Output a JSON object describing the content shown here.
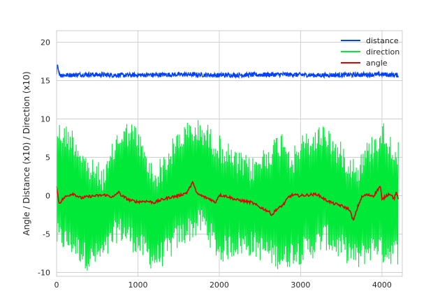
{
  "chart_data": {
    "type": "line",
    "title": "",
    "xlabel": "",
    "ylabel": "Angle / Distance (x10) / Direction (x10)",
    "xlim": [
      0,
      4250
    ],
    "ylim": [
      -10.5,
      21.5
    ],
    "x_ticks": [
      0,
      1000,
      2000,
      3000,
      4000
    ],
    "y_ticks": [
      -10,
      -5,
      0,
      5,
      10,
      15,
      20
    ],
    "x_tick_labels": [
      "0",
      "1000",
      "2000",
      "3000",
      "4000"
    ],
    "y_tick_labels": [
      "-10",
      "-5",
      "0",
      "5",
      "10",
      "15",
      "20"
    ],
    "grid": true,
    "legend_position": "top-right",
    "series": [
      {
        "name": "distance",
        "color": "#0040ff",
        "points": [
          [
            0,
            15.8
          ],
          [
            10,
            17.2
          ],
          [
            30,
            15.9
          ],
          [
            60,
            15.7
          ],
          [
            400,
            15.8
          ],
          [
            800,
            15.7
          ],
          [
            1200,
            15.75
          ],
          [
            1600,
            15.8
          ],
          [
            2000,
            15.7
          ],
          [
            2400,
            15.75
          ],
          [
            2800,
            15.8
          ],
          [
            3200,
            15.7
          ],
          [
            3600,
            15.75
          ],
          [
            4000,
            15.8
          ],
          [
            4200,
            15.7
          ]
        ],
        "band": [
          15.4,
          16.2
        ]
      },
      {
        "name": "direction",
        "color": "#00e838",
        "envelope_x": [
          0,
          200,
          400,
          600,
          750,
          900,
          1000,
          1100,
          1200,
          1350,
          1500,
          1650,
          1800,
          1900,
          2000,
          2200,
          2400,
          2600,
          2800,
          2900,
          3000,
          3200,
          3300,
          3400,
          3600,
          3700,
          3800,
          3950,
          4000,
          4200
        ],
        "envelope_high": [
          10,
          9,
          5,
          4,
          9,
          10,
          9,
          6,
          4,
          6,
          9,
          10,
          10,
          9,
          8,
          6,
          5,
          7,
          9,
          6,
          8,
          9,
          10,
          8,
          6,
          5,
          7,
          9,
          10,
          7
        ],
        "envelope_low": [
          -7,
          -8,
          -10,
          -9,
          -6,
          -7,
          -8,
          -9,
          -10,
          -9,
          -7,
          -6,
          -5,
          -7,
          -9,
          -8,
          -8,
          -9,
          -10,
          -9,
          -9,
          -8,
          -7,
          -8,
          -9,
          -10,
          -9,
          -8,
          -9,
          -9
        ]
      },
      {
        "name": "angle",
        "color": "#e00000",
        "points": [
          [
            0,
            1.2
          ],
          [
            30,
            -1.0
          ],
          [
            100,
            -0.2
          ],
          [
            200,
            0.3
          ],
          [
            300,
            -0.3
          ],
          [
            400,
            -0.1
          ],
          [
            500,
            0.0
          ],
          [
            600,
            0.1
          ],
          [
            700,
            -0.2
          ],
          [
            760,
            0.5
          ],
          [
            800,
            0.0
          ],
          [
            900,
            -0.6
          ],
          [
            1000,
            -0.8
          ],
          [
            1100,
            -0.7
          ],
          [
            1200,
            -0.9
          ],
          [
            1300,
            -0.5
          ],
          [
            1400,
            -0.2
          ],
          [
            1500,
            0.0
          ],
          [
            1600,
            0.4
          ],
          [
            1680,
            1.8
          ],
          [
            1720,
            0.3
          ],
          [
            1800,
            -0.1
          ],
          [
            1900,
            -0.5
          ],
          [
            1950,
            -0.9
          ],
          [
            2000,
            0.1
          ],
          [
            2100,
            -0.1
          ],
          [
            2200,
            -0.5
          ],
          [
            2300,
            -0.7
          ],
          [
            2400,
            -0.9
          ],
          [
            2500,
            -1.5
          ],
          [
            2600,
            -2.0
          ],
          [
            2650,
            -2.5
          ],
          [
            2700,
            -1.8
          ],
          [
            2750,
            -1.5
          ],
          [
            2800,
            -1.0
          ],
          [
            2850,
            -0.2
          ],
          [
            2900,
            0.1
          ],
          [
            3000,
            0.0
          ],
          [
            3100,
            0.1
          ],
          [
            3200,
            0.2
          ],
          [
            3300,
            -0.5
          ],
          [
            3400,
            -1.0
          ],
          [
            3500,
            -1.3
          ],
          [
            3600,
            -1.8
          ],
          [
            3650,
            -3.3
          ],
          [
            3700,
            -1.5
          ],
          [
            3750,
            -0.2
          ],
          [
            3800,
            0.1
          ],
          [
            3900,
            0.0
          ],
          [
            3980,
            1.3
          ],
          [
            4000,
            -0.6
          ],
          [
            4050,
            0.0
          ],
          [
            4100,
            0.3
          ],
          [
            4150,
            -0.4
          ],
          [
            4180,
            0.5
          ],
          [
            4200,
            -0.6
          ]
        ]
      }
    ]
  }
}
